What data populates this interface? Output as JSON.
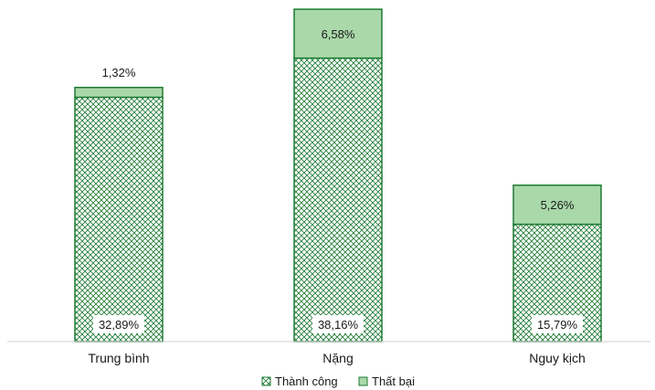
{
  "chart_data": {
    "type": "bar",
    "stacked": true,
    "categories": [
      "Trung bình",
      "Nặng",
      "Nguy kịch"
    ],
    "series": [
      {
        "name": "Thành công",
        "values": [
          32.89,
          38.16,
          15.79
        ],
        "labels": [
          "32,89%",
          "38,16%",
          "15,79%"
        ],
        "color": "#1e7b34",
        "fill": "crosshatch pattern"
      },
      {
        "name": "Thất bại",
        "values": [
          1.32,
          6.58,
          5.26
        ],
        "labels": [
          "1,32%",
          "6,58%",
          "5,26%"
        ],
        "color": "#a9d8a9"
      }
    ],
    "ylim": [
      0,
      45
    ],
    "grid": false,
    "legend_position": "bottom",
    "title": "",
    "xlabel": "",
    "ylabel": ""
  }
}
